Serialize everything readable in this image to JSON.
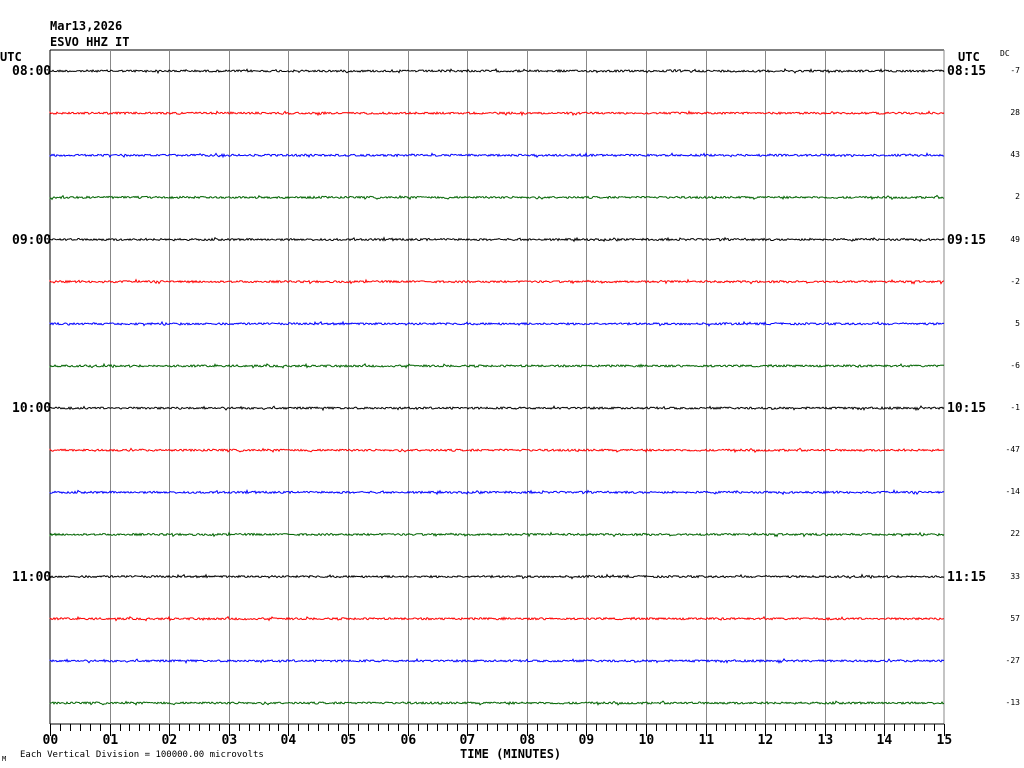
{
  "chart_data": {
    "type": "line",
    "title": "Mar13,2026",
    "subtitle": "ESVO HHZ IT",
    "left_axis_label": "UTC",
    "right_axis_label": "UTC",
    "dc_label": "DC",
    "xlabel": "TIME (MINUTES)",
    "xlim": [
      0,
      15
    ],
    "x_ticks": [
      "00",
      "01",
      "02",
      "03",
      "04",
      "05",
      "06",
      "07",
      "08",
      "09",
      "10",
      "11",
      "12",
      "13",
      "14",
      "15"
    ],
    "grid": true,
    "left_time_labels": [
      "08:00",
      "09:00",
      "10:00",
      "11:00"
    ],
    "right_time_labels": [
      "08:15",
      "09:15",
      "10:15",
      "11:15"
    ],
    "trace_colors": [
      "#000000",
      "#ff0000",
      "#0000ff",
      "#006400"
    ],
    "dc_values": [
      "-7",
      "28",
      "43",
      "2",
      "49",
      "-2",
      "5",
      "-6",
      "-1",
      "-47",
      "-14",
      "22",
      "33",
      "57",
      "-27",
      "-13"
    ],
    "footer": "Each Vertical Division = 100000.00 microvolts",
    "footer_mark": "M"
  }
}
